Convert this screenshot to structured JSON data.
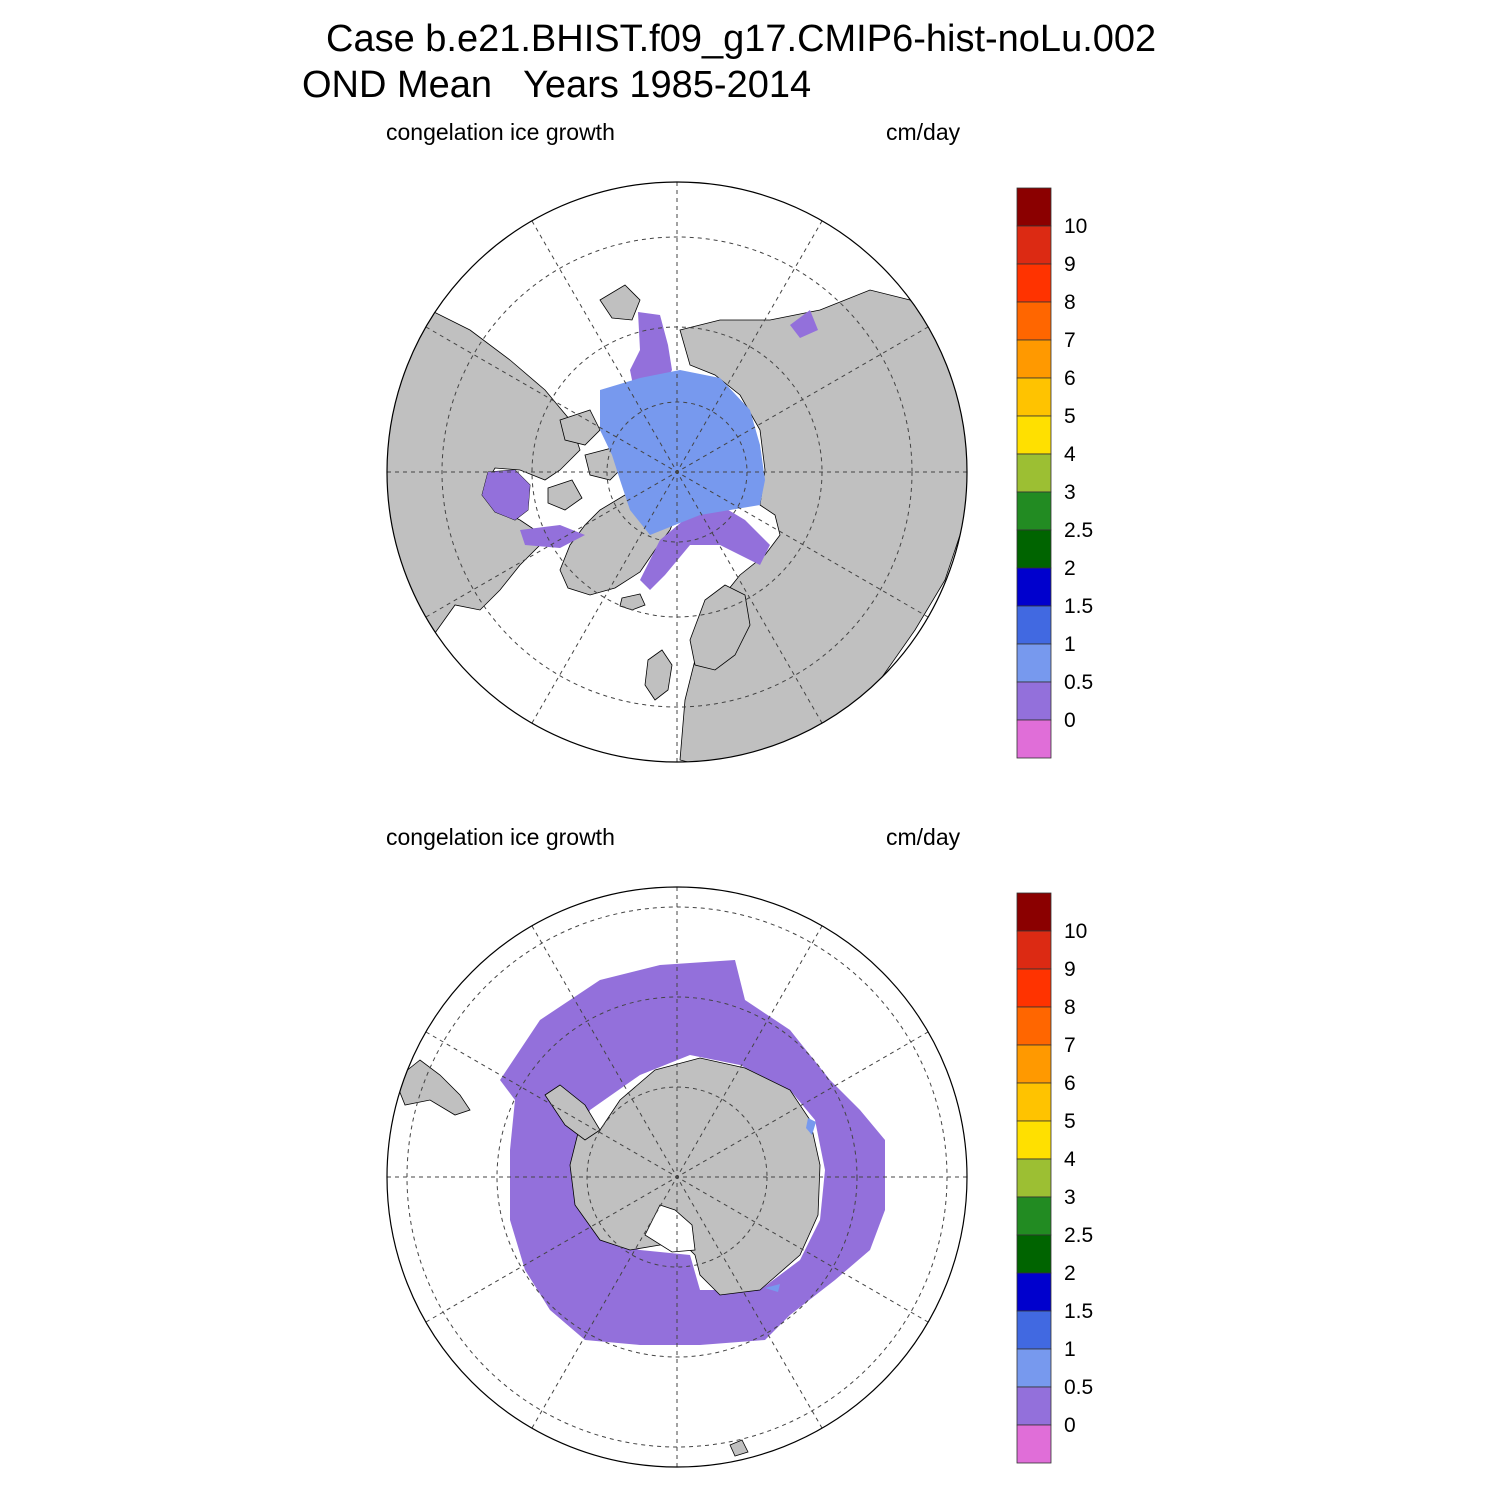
{
  "title": {
    "case": "Case b.e21.BHIST.f09_g17.CMIP6-hist-noLu.002",
    "season": "OND Mean",
    "years": "Years 1985-2014"
  },
  "chart_data": [
    {
      "type": "heatmap",
      "hemisphere": "north",
      "projection": "polar stereographic (north pole)",
      "left_label": "congelation ice growth",
      "right_label": "cm/day",
      "grid": true,
      "legend": "right",
      "colorbar": {
        "levels": [
          "10",
          "9",
          "8",
          "7",
          "6",
          "5",
          "4",
          "3",
          "2.5",
          "2",
          "1.5",
          "1",
          "0.5",
          "0"
        ],
        "colors": [
          "#8b0000",
          "#dc2a13",
          "#ff3300",
          "#ff6600",
          "#ff9900",
          "#ffc300",
          "#ffe000",
          "#9cbf33",
          "#228b22",
          "#006400",
          "#0000cd",
          "#4169e1",
          "#7799ee",
          "#9370db",
          "#e06ed8"
        ]
      },
      "dominant_range_cm_per_day": {
        "central_arctic": "0.5-1",
        "marginal_seas": "0-0.5"
      }
    },
    {
      "type": "heatmap",
      "hemisphere": "south",
      "projection": "polar stereographic (south pole)",
      "left_label": "congelation ice growth",
      "right_label": "cm/day",
      "grid": true,
      "legend": "right",
      "colorbar": {
        "levels": [
          "10",
          "9",
          "8",
          "7",
          "6",
          "5",
          "4",
          "3",
          "2.5",
          "2",
          "1.5",
          "1",
          "0.5",
          "0"
        ],
        "colors": [
          "#8b0000",
          "#dc2a13",
          "#ff3300",
          "#ff6600",
          "#ff9900",
          "#ffc300",
          "#ffe000",
          "#9cbf33",
          "#228b22",
          "#006400",
          "#0000cd",
          "#4169e1",
          "#7799ee",
          "#9370db",
          "#e06ed8"
        ]
      },
      "dominant_range_cm_per_day": {
        "southern_ocean_ring": "0-0.5"
      }
    }
  ],
  "colors": {
    "land": "#c0c0c0",
    "ice_low": "#9370db",
    "ice_mid": "#7799ee"
  }
}
